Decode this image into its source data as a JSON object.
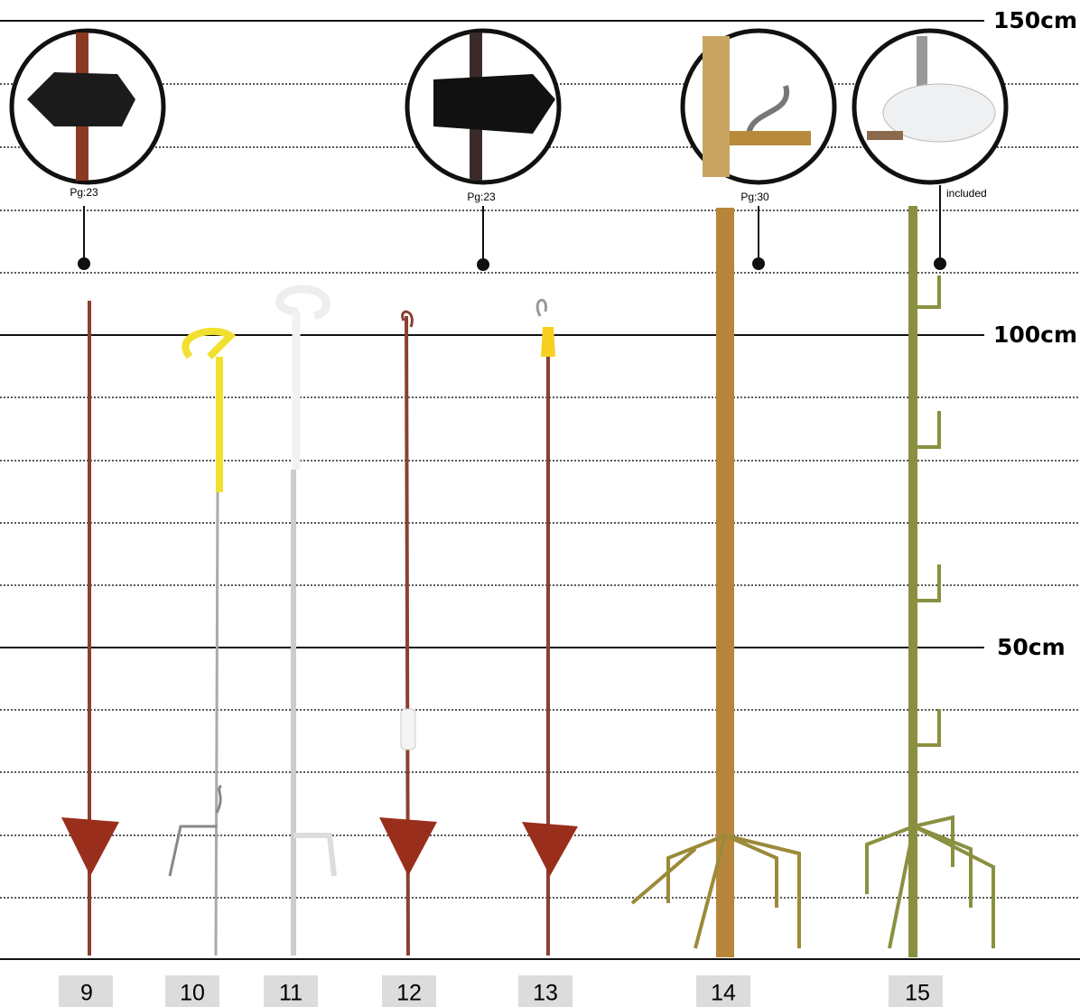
{
  "scale_labels": [
    "150cm",
    "100cm",
    "50cm"
  ],
  "callouts": [
    {
      "label": "Pg:23"
    },
    {
      "label": "Pg:23"
    },
    {
      "label": "Pg:30"
    },
    {
      "label": "included"
    }
  ],
  "posts": [
    "9",
    "10",
    "11",
    "12",
    "13",
    "14",
    "15"
  ]
}
